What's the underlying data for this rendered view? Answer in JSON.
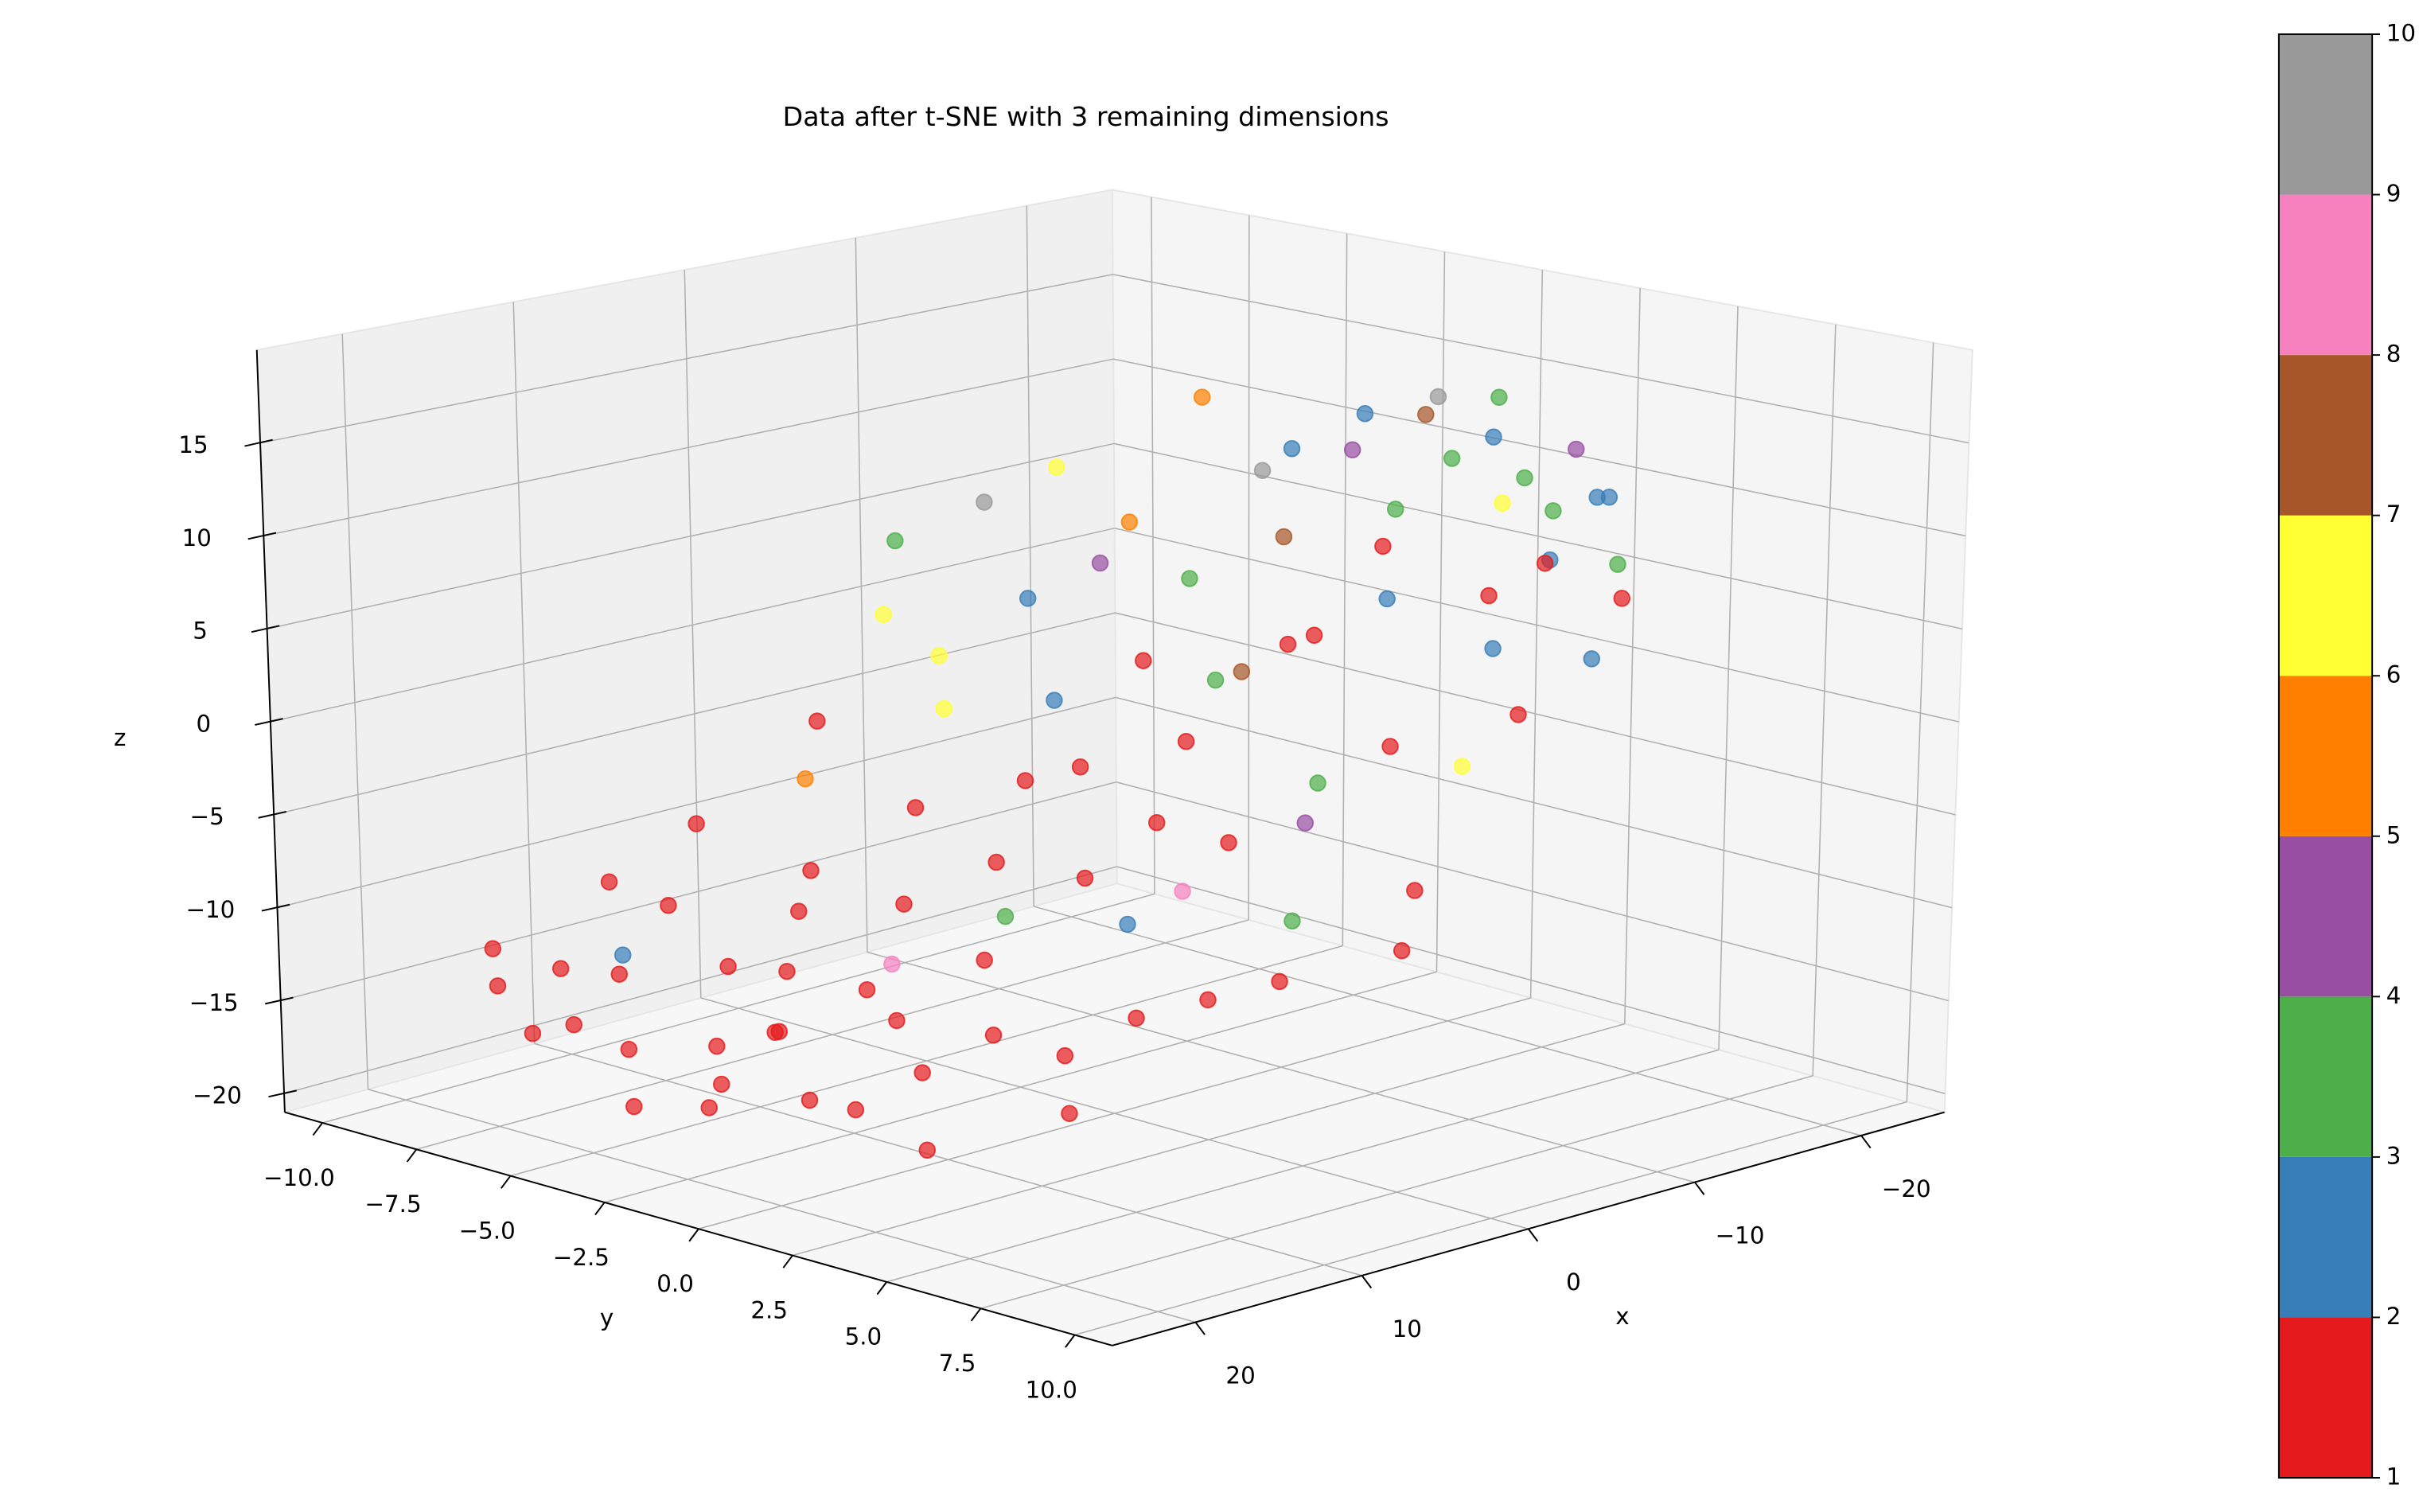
{
  "chart_data": {
    "type": "scatter3d",
    "title": "Data after t-SNE with 3 remaining dimensions",
    "xlabel": "x",
    "ylabel": "y",
    "zlabel": "z",
    "xlim": [
      -25,
      25
    ],
    "ylim": [
      -11,
      11
    ],
    "zlim": [
      -21,
      20
    ],
    "xticks": [
      {
        "value": -20,
        "label": "−20"
      },
      {
        "value": -10,
        "label": "−10"
      },
      0,
      10,
      20
    ],
    "yticks": [
      {
        "value": -10,
        "label": "−10.0"
      },
      {
        "value": -7.5,
        "label": "−7.5"
      },
      {
        "value": -5,
        "label": "−5.0"
      },
      {
        "value": -2.5,
        "label": "−2.5"
      },
      {
        "value": 0,
        "label": "0.0"
      },
      2.5,
      {
        "value": 5,
        "label": "5.0"
      },
      7.5,
      {
        "value": 10,
        "label": "10.0"
      }
    ],
    "zticks": [
      {
        "value": -20,
        "label": "−20"
      },
      {
        "value": -15,
        "label": "−15"
      },
      {
        "value": -10,
        "label": "−10"
      },
      {
        "value": -5,
        "label": "−5"
      },
      0,
      5,
      10,
      15
    ],
    "x": [
      20,
      19,
      21,
      18,
      17,
      20,
      16,
      19,
      15,
      22,
      14,
      17,
      18,
      16,
      13,
      20,
      15,
      12,
      14,
      11,
      19,
      13,
      10,
      12,
      16,
      9,
      11,
      8,
      10,
      7,
      9,
      6,
      8,
      5,
      7,
      4,
      6,
      3,
      5,
      2,
      4,
      3,
      1,
      2,
      0,
      1,
      -1,
      0,
      -2,
      -1,
      -3,
      -2,
      -4,
      -3,
      -5,
      -4,
      -6,
      -5,
      -7,
      -6,
      -8,
      -7,
      -9,
      -8,
      -10,
      -9,
      -11,
      -10,
      -12,
      -11,
      -13,
      -12,
      -14,
      -13,
      -15,
      -14,
      -16,
      -15,
      -17,
      -16,
      -18,
      -17,
      -19,
      -18,
      -20,
      -19,
      -12,
      -8,
      -6,
      -3,
      0,
      -14,
      -10,
      -16,
      -20,
      14,
      18,
      22,
      21,
      12
    ],
    "y": [
      -4,
      -2,
      -5,
      -1,
      -3,
      0,
      -6,
      -7,
      -2,
      -3,
      -4,
      1,
      -5,
      2,
      0,
      2,
      -8,
      -3,
      3,
      -1,
      -8,
      -6,
      1,
      4,
      -1,
      -4,
      2,
      -2,
      5,
      0,
      -7,
      3,
      6,
      -3,
      -5,
      1,
      7,
      -1,
      4,
      2,
      -6,
      6,
      -4,
      0,
      3,
      8,
      -2,
      5,
      1,
      -5,
      4,
      7,
      -1,
      2,
      5,
      -4,
      0,
      3,
      6,
      -3,
      1,
      4,
      -2,
      7,
      0,
      3,
      5,
      -4,
      2,
      -1,
      4,
      6,
      0,
      3,
      -2,
      5,
      1,
      4,
      -1,
      3,
      2,
      5,
      0,
      4,
      1,
      3,
      -3,
      -5,
      -6,
      -7,
      -6,
      7,
      8,
      6,
      4,
      5,
      3,
      -1,
      -7,
      -8
    ],
    "z": [
      -15,
      -16,
      -14,
      -13,
      -15,
      -12,
      -13,
      -16,
      -11,
      -17,
      -12,
      -10,
      -11,
      -14,
      -13,
      -15,
      -14,
      -9,
      -12,
      -11,
      -12,
      -10,
      -10,
      -13,
      -17,
      -8,
      -7,
      -9,
      -11,
      -6,
      -7,
      -8,
      -10,
      -5,
      -4,
      -7,
      -9,
      -3,
      -6,
      -4,
      -2,
      -7,
      -1,
      -2,
      -5,
      -8,
      0,
      -3,
      -1,
      1,
      -2,
      -6,
      2,
      3,
      0,
      4,
      1,
      5,
      -1,
      6,
      3,
      7,
      5,
      2,
      8,
      9,
      4,
      7,
      10,
      11,
      6,
      9,
      12,
      13,
      11,
      8,
      14,
      12,
      13,
      10,
      15,
      11,
      14,
      13,
      12,
      9,
      14,
      10,
      8,
      6,
      3,
      7,
      5,
      8,
      10,
      -15,
      -17,
      -16,
      -13,
      -10
    ],
    "class": [
      1,
      1,
      1,
      1,
      1,
      1,
      1,
      1,
      1,
      1,
      1,
      1,
      2,
      1,
      1,
      1,
      1,
      1,
      1,
      8,
      1,
      1,
      1,
      1,
      1,
      1,
      3,
      1,
      1,
      1,
      1,
      2,
      1,
      1,
      5,
      1,
      1,
      1,
      8,
      1,
      1,
      3,
      6,
      1,
      1,
      1,
      2,
      4,
      1,
      6,
      3,
      1,
      1,
      7,
      1,
      2,
      3,
      1,
      6,
      4,
      1,
      2,
      3,
      1,
      7,
      1,
      2,
      5,
      3,
      9,
      1,
      2,
      4,
      3,
      2,
      1,
      7,
      3,
      2,
      6,
      3,
      2,
      9,
      4,
      2,
      3,
      5,
      6,
      9,
      3,
      6,
      1,
      2,
      3,
      2,
      1,
      1,
      1,
      1,
      1
    ],
    "colorbar": {
      "clim": [
        1,
        10
      ],
      "ticks": [
        1,
        2,
        3,
        4,
        5,
        6,
        7,
        8,
        9,
        10
      ],
      "colors": [
        "#e41a1c",
        "#377eb8",
        "#4daf4a",
        "#984ea3",
        "#ff7f00",
        "#ffff33",
        "#a65628",
        "#f781bf",
        "#999999"
      ]
    }
  }
}
